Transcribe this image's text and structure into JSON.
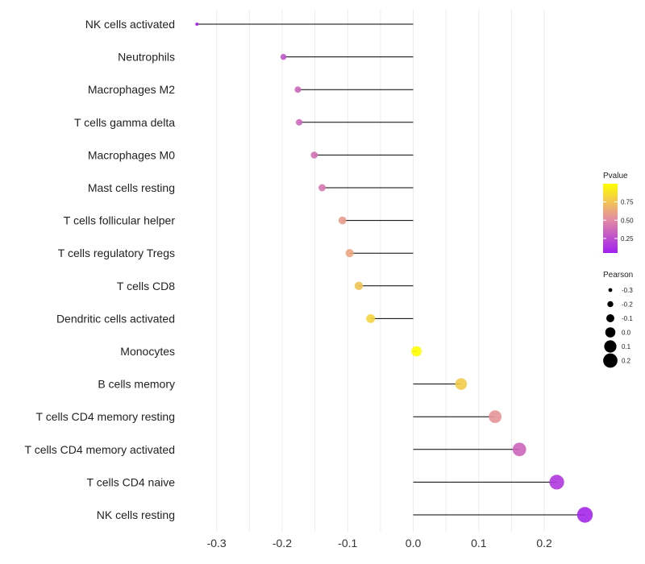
{
  "chart_data": {
    "type": "lollipop",
    "title": "",
    "xlabel": "",
    "ylabel": "",
    "xlim": [
      -0.35,
      0.27
    ],
    "xticks": [
      -0.3,
      -0.2,
      -0.1,
      0.0,
      0.1,
      0.2
    ],
    "xtick_labels": [
      "-0.3",
      "-0.2",
      "-0.1",
      "0.0",
      "0.1",
      "0.2"
    ],
    "categories": [
      "NK cells activated",
      "Neutrophils",
      "Macrophages M2",
      "T cells gamma delta",
      "Macrophages M0",
      "Mast cells resting",
      "T cells follicular helper",
      "T cells regulatory  Tregs ",
      "T cells CD8",
      "Dendritic cells activated",
      "Monocytes",
      "B cells memory",
      "T cells CD4 memory resting",
      "T cells CD4 memory activated",
      "T cells CD4 naive",
      "NK cells resting"
    ],
    "pearson": [
      -0.33,
      -0.198,
      -0.176,
      -0.174,
      -0.151,
      -0.139,
      -0.108,
      -0.097,
      -0.083,
      -0.065,
      0.005,
      0.073,
      0.125,
      0.162,
      0.219,
      0.262
    ],
    "pvalue": [
      0.05,
      0.28,
      0.35,
      0.36,
      0.4,
      0.43,
      0.58,
      0.62,
      0.75,
      0.82,
      1.0,
      0.78,
      0.55,
      0.35,
      0.15,
      0.08
    ],
    "legend": {
      "color": {
        "title": "Pvalue",
        "tick_values": [
          0.25,
          0.5,
          0.75
        ],
        "tick_labels": [
          "0.25",
          "0.50",
          "0.75"
        ],
        "range": [
          0.05,
          1.0
        ],
        "colors": [
          "#a020f0",
          "#e58fa0",
          "#ffff00"
        ]
      },
      "size": {
        "title": "Pearson",
        "values": [
          -0.3,
          -0.2,
          -0.1,
          0.0,
          0.1,
          0.2
        ],
        "labels": [
          "-0.3",
          "-0.2",
          "-0.1",
          "0.0",
          "0.1",
          "0.2"
        ]
      },
      "position": "right"
    },
    "colors": {
      "segment": "#000000",
      "grid": "#ebebeb",
      "text": "#222222"
    }
  }
}
